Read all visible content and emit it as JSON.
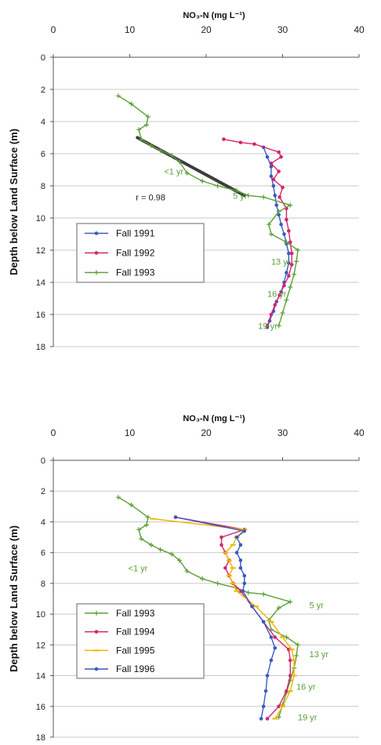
{
  "chart_data": [
    {
      "type": "line",
      "xlabel": "NO₃-N (mg L⁻¹)",
      "ylabel": "Depth below Land Surface (m)",
      "xlim": [
        0,
        40
      ],
      "ylim": [
        18,
        0
      ],
      "x_ticks": [
        "0",
        "10",
        "20",
        "30",
        "40"
      ],
      "y_ticks": [
        "0",
        "2",
        "4",
        "6",
        "8",
        "10",
        "12",
        "14",
        "16",
        "18"
      ],
      "grid": "horizontal",
      "legend_position": "lower-left",
      "series": [
        {
          "name": "Fall 1991",
          "color": "#3a5bbf",
          "marker": "dot",
          "points": [
            [
              27.5,
              5.6
            ],
            [
              28,
              6.2
            ],
            [
              28.5,
              6.8
            ],
            [
              28.5,
              7.4
            ],
            [
              28.8,
              8.0
            ],
            [
              29,
              8.6
            ],
            [
              29.2,
              9.2
            ],
            [
              29.5,
              9.8
            ],
            [
              29.8,
              10.4
            ],
            [
              30.2,
              11.0
            ],
            [
              30.5,
              11.6
            ],
            [
              30.8,
              12.2
            ],
            [
              30.8,
              12.8
            ],
            [
              30.5,
              13.4
            ],
            [
              30.2,
              14.0
            ],
            [
              29.8,
              14.6
            ],
            [
              29.2,
              15.2
            ],
            [
              28.8,
              15.8
            ],
            [
              28.3,
              16.4
            ],
            [
              28,
              16.8
            ]
          ]
        },
        {
          "name": "Fall 1992",
          "color": "#d4266e",
          "marker": "dot",
          "points": [
            [
              22.3,
              5.1
            ],
            [
              24.5,
              5.3
            ],
            [
              26.3,
              5.4
            ],
            [
              29.5,
              5.9
            ],
            [
              29.8,
              6.2
            ],
            [
              28.5,
              6.6
            ],
            [
              29.5,
              7.1
            ],
            [
              28.8,
              7.6
            ],
            [
              30,
              8.1
            ],
            [
              29.6,
              8.7
            ],
            [
              30.5,
              9.4
            ],
            [
              30.5,
              10.1
            ],
            [
              30.8,
              10.8
            ],
            [
              31,
              11.5
            ],
            [
              31.2,
              12.2
            ],
            [
              31.2,
              12.9
            ],
            [
              30.8,
              13.6
            ],
            [
              30.2,
              14.2
            ],
            [
              29.6,
              14.8
            ],
            [
              29,
              15.4
            ],
            [
              28.5,
              16.0
            ],
            [
              28,
              16.7
            ]
          ]
        },
        {
          "name": "Fall 1993",
          "color": "#5aa03a",
          "marker": "plus",
          "points": [
            [
              8.5,
              2.4
            ],
            [
              10.2,
              2.9
            ],
            [
              12.4,
              3.7
            ],
            [
              12.2,
              4.2
            ],
            [
              11.2,
              4.5
            ],
            [
              11.5,
              5.1
            ],
            [
              12.8,
              5.5
            ],
            [
              14,
              5.8
            ],
            [
              15.5,
              6.1
            ],
            [
              16.5,
              6.5
            ],
            [
              17.5,
              7.2
            ],
            [
              19.5,
              7.7
            ],
            [
              21.5,
              8.0
            ],
            [
              24,
              8.3
            ],
            [
              25.5,
              8.6
            ],
            [
              27.5,
              8.7
            ],
            [
              31,
              9.2
            ],
            [
              29.5,
              9.6
            ],
            [
              28.2,
              10.4
            ],
            [
              28.5,
              11.0
            ],
            [
              30.5,
              11.5
            ],
            [
              32,
              12.0
            ],
            [
              31.8,
              12.7
            ],
            [
              31.5,
              13.5
            ],
            [
              31,
              14.3
            ],
            [
              30.5,
              15.1
            ],
            [
              30,
              15.9
            ],
            [
              29.5,
              16.7
            ]
          ]
        }
      ],
      "regression_line": {
        "points": [
          [
            11,
            5.0
          ],
          [
            25,
            8.6
          ]
        ],
        "color": "#3c3c3c"
      },
      "annotations": [
        {
          "text": "<1 yr",
          "x": 14.5,
          "y": 7.1,
          "color": "#5aa03a"
        },
        {
          "text": "5 yr",
          "x": 23.5,
          "y": 8.6,
          "color": "#5aa03a"
        },
        {
          "text": "r = 0.98",
          "x": 10.8,
          "y": 8.7,
          "color": "#222222"
        },
        {
          "text": "13 yr",
          "x": 28.5,
          "y": 12.7,
          "color": "#5aa03a"
        },
        {
          "text": "16 yr",
          "x": 28,
          "y": 14.7,
          "color": "#5aa03a"
        },
        {
          "text": "19 yr",
          "x": 26.8,
          "y": 16.7,
          "color": "#5aa03a"
        }
      ]
    },
    {
      "type": "line",
      "xlabel": "NO₃-N (mg L⁻¹)",
      "ylabel": "Depth below Land Surface (m)",
      "xlim": [
        0,
        40
      ],
      "ylim": [
        18,
        0
      ],
      "x_ticks": [
        "0",
        "10",
        "20",
        "30",
        "40"
      ],
      "y_ticks": [
        "0",
        "2",
        "4",
        "6",
        "8",
        "10",
        "12",
        "14",
        "16",
        "18"
      ],
      "grid": "horizontal",
      "legend_position": "lower-left",
      "series": [
        {
          "name": "Fall 1993",
          "color": "#5aa03a",
          "marker": "plus",
          "points": [
            [
              8.5,
              2.4
            ],
            [
              10.2,
              2.9
            ],
            [
              12.4,
              3.7
            ],
            [
              12.2,
              4.2
            ],
            [
              11.2,
              4.5
            ],
            [
              11.5,
              5.1
            ],
            [
              12.8,
              5.5
            ],
            [
              14,
              5.8
            ],
            [
              15.5,
              6.1
            ],
            [
              16.5,
              6.5
            ],
            [
              17.5,
              7.2
            ],
            [
              19.5,
              7.7
            ],
            [
              21.5,
              8.0
            ],
            [
              24,
              8.3
            ],
            [
              25.5,
              8.6
            ],
            [
              27.5,
              8.7
            ],
            [
              31,
              9.2
            ],
            [
              29.5,
              9.6
            ],
            [
              28.2,
              10.4
            ],
            [
              28.5,
              11.0
            ],
            [
              30.5,
              11.5
            ],
            [
              32,
              12.0
            ],
            [
              31.8,
              12.7
            ],
            [
              31.5,
              13.5
            ],
            [
              31,
              14.3
            ],
            [
              30.5,
              15.1
            ],
            [
              30,
              15.9
            ],
            [
              29.5,
              16.7
            ]
          ]
        },
        {
          "name": "Fall 1994",
          "color": "#d4266e",
          "marker": "dot",
          "points": [
            [
              16,
              3.7
            ],
            [
              25,
              4.5
            ],
            [
              22,
              5.0
            ],
            [
              22,
              5.5
            ],
            [
              22.5,
              6.0
            ],
            [
              23,
              6.5
            ],
            [
              22.5,
              7.0
            ],
            [
              23,
              7.5
            ],
            [
              23.5,
              8.0
            ],
            [
              24.5,
              8.5
            ],
            [
              26,
              9.5
            ],
            [
              27.5,
              10.5
            ],
            [
              29,
              11.5
            ],
            [
              30.8,
              12.3
            ],
            [
              31,
              13.0
            ],
            [
              31,
              14.0
            ],
            [
              30.5,
              15.0
            ],
            [
              29.5,
              16.0
            ],
            [
              28,
              16.8
            ]
          ]
        },
        {
          "name": "Fall 1995",
          "color": "#f0b400",
          "marker": "dash",
          "points": [
            [
              13,
              3.8
            ],
            [
              25,
              4.5
            ],
            [
              24,
              5.0
            ],
            [
              23.5,
              5.5
            ],
            [
              22.5,
              6.0
            ],
            [
              23,
              6.5
            ],
            [
              23.5,
              7.0
            ],
            [
              23,
              7.5
            ],
            [
              23.5,
              8.0
            ],
            [
              24,
              8.5
            ],
            [
              26.5,
              9.5
            ],
            [
              28.5,
              10.5
            ],
            [
              30,
              11.5
            ],
            [
              31.2,
              12.3
            ],
            [
              31.5,
              13.0
            ],
            [
              31.5,
              14.0
            ],
            [
              31,
              15.0
            ],
            [
              30,
              16.0
            ],
            [
              29,
              16.8
            ]
          ]
        },
        {
          "name": "Fall 1996",
          "color": "#3a5bbf",
          "marker": "dot",
          "points": [
            [
              16,
              3.7
            ],
            [
              25,
              4.6
            ],
            [
              24,
              5.0
            ],
            [
              24.5,
              5.5
            ],
            [
              24,
              6.0
            ],
            [
              24.5,
              6.5
            ],
            [
              24.5,
              7.0
            ],
            [
              25,
              7.5
            ],
            [
              25,
              8.0
            ],
            [
              24.8,
              8.5
            ],
            [
              26,
              9.5
            ],
            [
              27.5,
              10.5
            ],
            [
              28.5,
              11.5
            ],
            [
              29,
              12.2
            ],
            [
              28.5,
              13.0
            ],
            [
              28,
              14.0
            ],
            [
              27.8,
              15.0
            ],
            [
              27.5,
              16.0
            ],
            [
              27.2,
              16.8
            ]
          ]
        }
      ],
      "annotations": [
        {
          "text": "<1 yr",
          "x": 9.8,
          "y": 7.0,
          "color": "#5aa03a"
        },
        {
          "text": "5 yr",
          "x": 33.5,
          "y": 9.4,
          "color": "#5aa03a"
        },
        {
          "text": "13 yr",
          "x": 33.5,
          "y": 12.6,
          "color": "#5aa03a"
        },
        {
          "text": "16 yr",
          "x": 31.8,
          "y": 14.7,
          "color": "#5aa03a"
        },
        {
          "text": "19 yr",
          "x": 32,
          "y": 16.7,
          "color": "#5aa03a"
        }
      ]
    }
  ]
}
